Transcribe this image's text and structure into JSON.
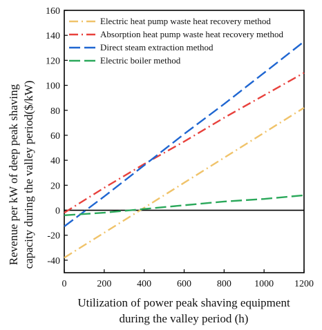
{
  "chart_data": {
    "type": "line",
    "title": "",
    "xlabel": [
      "Utilization of power peak shaving equipment",
      "during the valley period (h)"
    ],
    "ylabel": [
      "Revenue per kW of deep peak shaving",
      "capacity during the valley period($/kW)"
    ],
    "xlim": [
      0,
      1200
    ],
    "ylim": [
      -50,
      160
    ],
    "xticks": [
      0,
      200,
      400,
      600,
      800,
      1000,
      1200
    ],
    "yticks": [
      -40,
      -20,
      0,
      20,
      40,
      60,
      80,
      100,
      120,
      140,
      160
    ],
    "grid": false,
    "legend_position": "top-left",
    "zero_line": true,
    "series": [
      {
        "name": "Electric heat pump waste heat recovery method",
        "color": "#f0c36a",
        "dash": "dashdot",
        "x": [
          0,
          1200
        ],
        "y": [
          -38,
          82
        ]
      },
      {
        "name": "Absorption heat pump waste heat recovery method",
        "color": "#e8413c",
        "dash": "dashdot",
        "x": [
          0,
          200,
          400,
          600,
          800,
          1000,
          1200
        ],
        "y": [
          -2,
          18,
          37,
          55,
          74,
          92,
          110
        ]
      },
      {
        "name": "Direct steam extraction method",
        "color": "#1f66d1",
        "dash": "dash",
        "x": [
          0,
          200,
          400,
          600,
          800,
          1000,
          1200
        ],
        "y": [
          -13,
          11,
          36,
          61,
          85,
          110,
          135
        ]
      },
      {
        "name": "Electric boiler method",
        "color": "#2aa85a",
        "dash": "dash",
        "x": [
          0,
          200,
          400,
          600,
          800,
          1000,
          1200
        ],
        "y": [
          -4,
          -2,
          1,
          4,
          7,
          9,
          12
        ]
      }
    ]
  }
}
